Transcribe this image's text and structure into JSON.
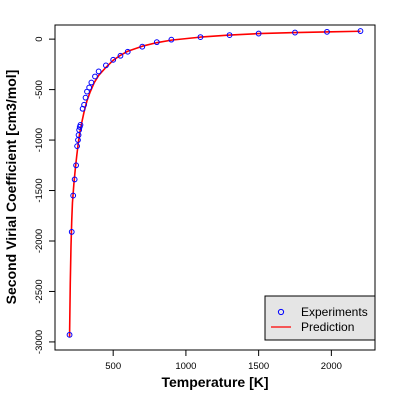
{
  "chart_data": {
    "type": "scatter",
    "xlabel": "Temperature [K]",
    "ylabel": "Second Virial Coefficient [cm3/mol]",
    "xlim": [
      100,
      2300
    ],
    "ylim": [
      -3080,
      140
    ],
    "xticks": [
      500,
      1000,
      1500,
      2000
    ],
    "yticks": [
      0,
      -500,
      -1000,
      -1500,
      -2000,
      -2500,
      -3000
    ],
    "grid": false,
    "legend_position": "bottom-right",
    "series": [
      {
        "name": "Experiments",
        "kind": "points",
        "marker": "open-circle",
        "color": "#0000ff",
        "x": [
          200,
          215,
          225,
          235,
          245,
          252,
          258,
          262,
          266,
          270,
          275,
          290,
          300,
          310,
          320,
          335,
          350,
          375,
          400,
          450,
          500,
          550,
          600,
          700,
          800,
          900,
          1100,
          1300,
          1500,
          1750,
          1970,
          2200
        ],
        "y": [
          -2930,
          -1910,
          -1550,
          -1390,
          -1250,
          -1060,
          -1000,
          -950,
          -900,
          -870,
          -850,
          -690,
          -650,
          -580,
          -520,
          -480,
          -430,
          -370,
          -320,
          -260,
          -205,
          -165,
          -125,
          -75,
          -30,
          -5,
          20,
          40,
          55,
          65,
          72,
          80
        ]
      },
      {
        "name": "Prediction",
        "kind": "line",
        "color": "#ff0000",
        "x": [
          200,
          205,
          210,
          215,
          220,
          230,
          240,
          250,
          260,
          270,
          285,
          300,
          320,
          340,
          370,
          400,
          450,
          500,
          550,
          600,
          700,
          800,
          900,
          1000,
          1100,
          1300,
          1500,
          1750,
          2000,
          2200
        ],
        "y": [
          -2950,
          -2420,
          -2050,
          -1800,
          -1620,
          -1430,
          -1280,
          -1150,
          -1030,
          -930,
          -820,
          -720,
          -610,
          -530,
          -430,
          -360,
          -280,
          -210,
          -160,
          -120,
          -70,
          -35,
          -10,
          5,
          20,
          40,
          55,
          65,
          72,
          78
        ]
      }
    ]
  },
  "colors": {
    "points": "#0000ff",
    "line": "#ff0000",
    "legend_bg": "#e5e5e5"
  }
}
